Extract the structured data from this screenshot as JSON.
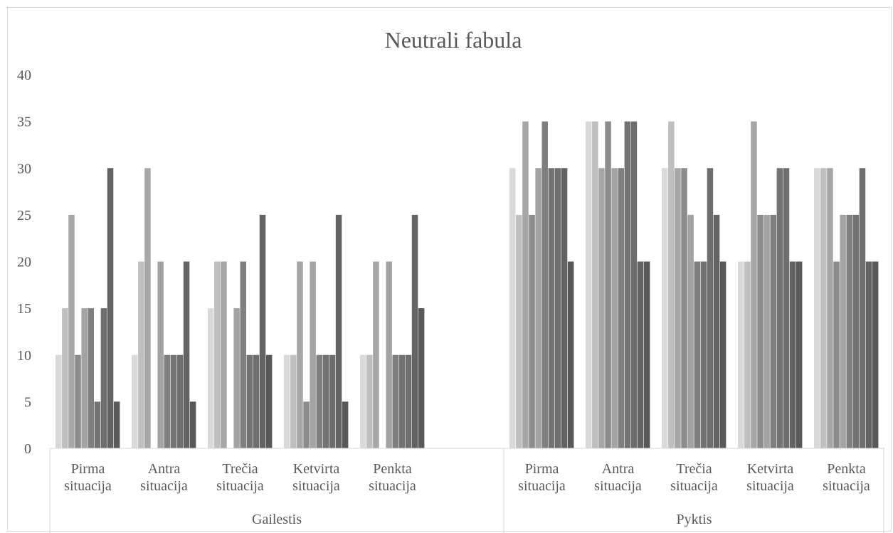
{
  "chart_data": {
    "type": "bar",
    "title": "Neutrali fabula",
    "xlabel": "",
    "ylabel": "",
    "ylim": [
      0,
      40
    ],
    "yticks": [
      0,
      5,
      10,
      15,
      20,
      25,
      30,
      35,
      40
    ],
    "grid": false,
    "legend": "none",
    "groups": [
      {
        "label": "Gailestis",
        "categories": [
          {
            "label": [
              "Pirma",
              "situacija"
            ],
            "values": [
              10,
              15,
              25,
              10,
              15,
              15,
              5,
              15,
              30,
              5
            ]
          },
          {
            "label": [
              "Antra",
              "situacija"
            ],
            "values": [
              10,
              20,
              30,
              0,
              20,
              10,
              10,
              10,
              20,
              5
            ]
          },
          {
            "label": [
              "Trečia",
              "situacija"
            ],
            "values": [
              15,
              20,
              20,
              0,
              15,
              20,
              10,
              10,
              25,
              10
            ]
          },
          {
            "label": [
              "Ketvirta",
              "situacija"
            ],
            "values": [
              10,
              10,
              20,
              5,
              20,
              10,
              10,
              10,
              25,
              5
            ]
          },
          {
            "label": [
              "Penkta",
              "situacija"
            ],
            "values": [
              10,
              10,
              20,
              0,
              20,
              10,
              10,
              10,
              25,
              15
            ]
          }
        ]
      },
      {
        "label": "Pyktis",
        "categories": [
          {
            "label": [
              "Pirma",
              "situacija"
            ],
            "values": [
              30,
              25,
              35,
              25,
              30,
              35,
              30,
              30,
              30,
              20
            ]
          },
          {
            "label": [
              "Antra",
              "situacija"
            ],
            "values": [
              35,
              35,
              30,
              35,
              30,
              30,
              35,
              35,
              20,
              20
            ]
          },
          {
            "label": [
              "Trečia",
              "situacija"
            ],
            "values": [
              30,
              35,
              30,
              30,
              25,
              20,
              20,
              30,
              25,
              20
            ]
          },
          {
            "label": [
              "Ketvirta",
              "situacija"
            ],
            "values": [
              20,
              20,
              35,
              25,
              25,
              25,
              30,
              30,
              20,
              20
            ]
          },
          {
            "label": [
              "Penkta",
              "situacija"
            ],
            "values": [
              30,
              30,
              30,
              20,
              25,
              25,
              25,
              30,
              20,
              20
            ]
          }
        ]
      }
    ],
    "series_colors": [
      "#d9d9d9",
      "#bfbfbf",
      "#a6a6a6",
      "#8c8c8c",
      "#a3a3a3",
      "#7f7f7f",
      "#737373",
      "#6e6e6e",
      "#636363",
      "#595959"
    ],
    "axis_color": "#d9d9d9"
  }
}
